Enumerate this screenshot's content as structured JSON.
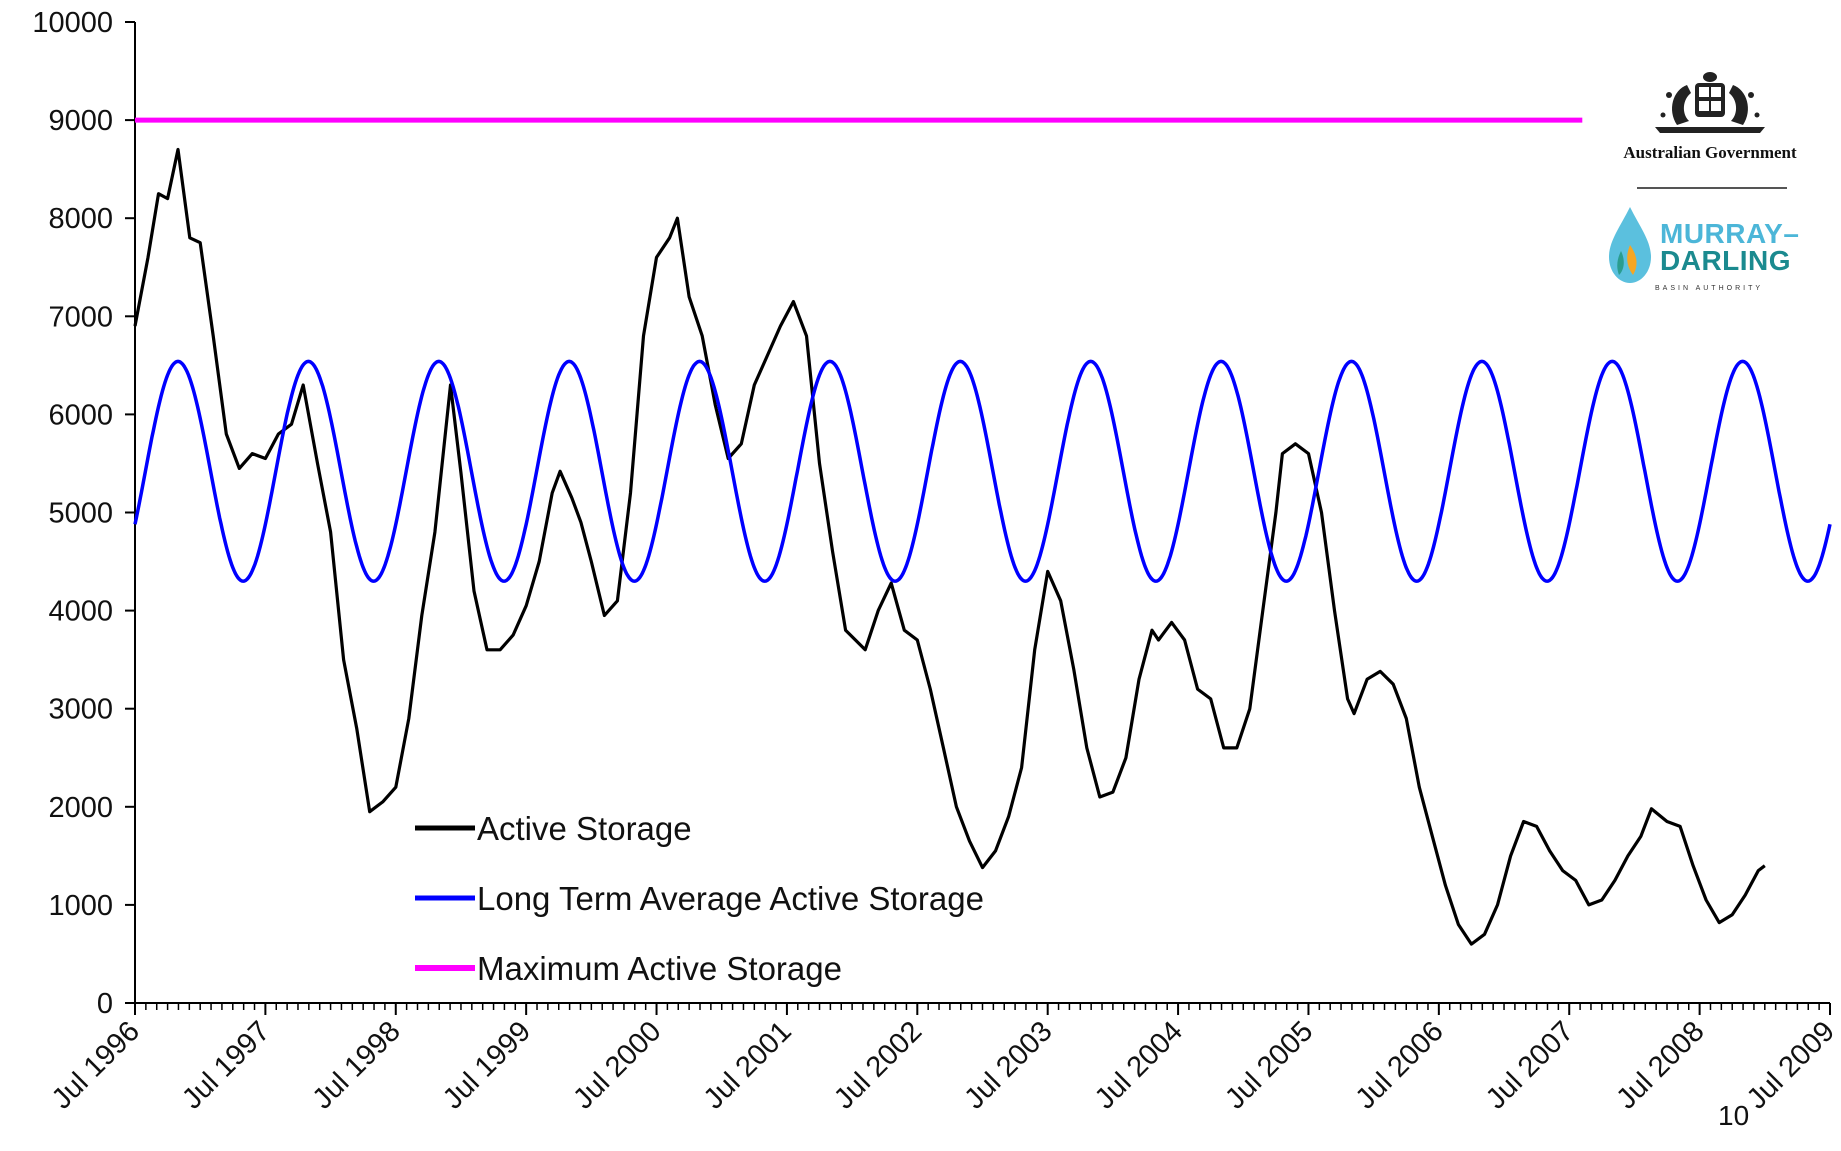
{
  "chart_data": {
    "type": "line",
    "title": "",
    "xlabel": "",
    "ylabel": "",
    "ylim": [
      0,
      10000
    ],
    "yticks": [
      0,
      1000,
      2000,
      3000,
      4000,
      5000,
      6000,
      7000,
      8000,
      9000,
      10000
    ],
    "xlim": [
      1996.5,
      2009.5
    ],
    "xtick_labels": [
      "Jul 1996",
      "Jul 1997",
      "Jul 1998",
      "Jul 1999",
      "Jul 2000",
      "Jul 2001",
      "Jul 2002",
      "Jul 2003",
      "Jul 2004",
      "Jul 2005",
      "Jul 2006",
      "Jul 2007",
      "Jul 2008",
      "Jul 2009"
    ],
    "grid": false,
    "legend_position": "bottom-left",
    "series": [
      {
        "name": "Active Storage",
        "color": "#000000",
        "points": [
          [
            1996.5,
            6900
          ],
          [
            1996.6,
            7600
          ],
          [
            1996.68,
            8250
          ],
          [
            1996.75,
            8200
          ],
          [
            1996.83,
            8700
          ],
          [
            1996.92,
            7800
          ],
          [
            1997.0,
            7750
          ],
          [
            1997.1,
            6800
          ],
          [
            1997.2,
            5800
          ],
          [
            1997.3,
            5450
          ],
          [
            1997.4,
            5600
          ],
          [
            1997.5,
            5550
          ],
          [
            1997.6,
            5800
          ],
          [
            1997.7,
            5900
          ],
          [
            1997.79,
            6300
          ],
          [
            1997.9,
            5500
          ],
          [
            1998.0,
            4800
          ],
          [
            1998.1,
            3500
          ],
          [
            1998.2,
            2800
          ],
          [
            1998.3,
            1950
          ],
          [
            1998.4,
            2050
          ],
          [
            1998.5,
            2200
          ],
          [
            1998.6,
            2900
          ],
          [
            1998.7,
            3950
          ],
          [
            1998.8,
            4800
          ],
          [
            1998.92,
            6300
          ],
          [
            1999.0,
            5400
          ],
          [
            1999.1,
            4200
          ],
          [
            1999.2,
            3600
          ],
          [
            1999.3,
            3600
          ],
          [
            1999.4,
            3750
          ],
          [
            1999.5,
            4050
          ],
          [
            1999.6,
            4500
          ],
          [
            1999.7,
            5200
          ],
          [
            1999.76,
            5420
          ],
          [
            1999.85,
            5150
          ],
          [
            1999.92,
            4900
          ],
          [
            2000.0,
            4500
          ],
          [
            2000.1,
            3950
          ],
          [
            2000.2,
            4100
          ],
          [
            2000.3,
            5200
          ],
          [
            2000.4,
            6800
          ],
          [
            2000.5,
            7600
          ],
          [
            2000.6,
            7800
          ],
          [
            2000.66,
            8000
          ],
          [
            2000.75,
            7200
          ],
          [
            2000.85,
            6800
          ],
          [
            2000.95,
            6100
          ],
          [
            2001.05,
            5550
          ],
          [
            2001.15,
            5700
          ],
          [
            2001.25,
            6300
          ],
          [
            2001.35,
            6600
          ],
          [
            2001.45,
            6900
          ],
          [
            2001.55,
            7150
          ],
          [
            2001.65,
            6800
          ],
          [
            2001.75,
            5500
          ],
          [
            2001.85,
            4600
          ],
          [
            2001.95,
            3800
          ],
          [
            2002.1,
            3600
          ],
          [
            2002.2,
            4000
          ],
          [
            2002.3,
            4280
          ],
          [
            2002.4,
            3800
          ],
          [
            2002.5,
            3700
          ],
          [
            2002.6,
            3200
          ],
          [
            2002.7,
            2600
          ],
          [
            2002.8,
            2000
          ],
          [
            2002.9,
            1650
          ],
          [
            2003.0,
            1380
          ],
          [
            2003.1,
            1550
          ],
          [
            2003.2,
            1900
          ],
          [
            2003.3,
            2400
          ],
          [
            2003.4,
            3600
          ],
          [
            2003.5,
            4400
          ],
          [
            2003.6,
            4100
          ],
          [
            2003.7,
            3400
          ],
          [
            2003.8,
            2600
          ],
          [
            2003.9,
            2100
          ],
          [
            2004.0,
            2150
          ],
          [
            2004.1,
            2500
          ],
          [
            2004.2,
            3300
          ],
          [
            2004.3,
            3800
          ],
          [
            2004.35,
            3700
          ],
          [
            2004.45,
            3880
          ],
          [
            2004.55,
            3700
          ],
          [
            2004.65,
            3200
          ],
          [
            2004.75,
            3100
          ],
          [
            2004.85,
            2600
          ],
          [
            2004.95,
            2600
          ],
          [
            2005.05,
            3000
          ],
          [
            2005.15,
            4000
          ],
          [
            2005.25,
            5000
          ],
          [
            2005.3,
            5600
          ],
          [
            2005.4,
            5700
          ],
          [
            2005.5,
            5600
          ],
          [
            2005.6,
            5000
          ],
          [
            2005.7,
            4000
          ],
          [
            2005.8,
            3100
          ],
          [
            2005.85,
            2950
          ],
          [
            2005.95,
            3300
          ],
          [
            2006.05,
            3380
          ],
          [
            2006.15,
            3250
          ],
          [
            2006.25,
            2900
          ],
          [
            2006.35,
            2200
          ],
          [
            2006.45,
            1700
          ],
          [
            2006.55,
            1200
          ],
          [
            2006.65,
            800
          ],
          [
            2006.75,
            600
          ],
          [
            2006.85,
            700
          ],
          [
            2006.95,
            1000
          ],
          [
            2007.05,
            1500
          ],
          [
            2007.15,
            1850
          ],
          [
            2007.25,
            1800
          ],
          [
            2007.35,
            1550
          ],
          [
            2007.45,
            1350
          ],
          [
            2007.55,
            1250
          ],
          [
            2007.65,
            1000
          ],
          [
            2007.75,
            1050
          ],
          [
            2007.85,
            1250
          ],
          [
            2007.95,
            1500
          ],
          [
            2008.05,
            1700
          ],
          [
            2008.13,
            1980
          ],
          [
            2008.25,
            1850
          ],
          [
            2008.35,
            1800
          ],
          [
            2008.45,
            1400
          ],
          [
            2008.55,
            1050
          ],
          [
            2008.65,
            820
          ],
          [
            2008.75,
            900
          ],
          [
            2008.85,
            1100
          ],
          [
            2008.95,
            1350
          ],
          [
            2009.0,
            1400
          ]
        ]
      },
      {
        "name": "Long Term Average Active Storage",
        "color": "#0000ff",
        "mean": 5420,
        "amplitude": 1120,
        "peak_offset_years": 0.33,
        "period_years": 1,
        "points": []
      },
      {
        "name": "Maximum Active Storage",
        "color": "#ff00ff",
        "points": [
          [
            1996.5,
            9000
          ],
          [
            2007.6,
            9000
          ]
        ]
      }
    ]
  },
  "branding": {
    "government": "Australian Government",
    "org_line1": "MURRAY–",
    "org_line2": "DARLING",
    "org_sub": "BASIN AUTHORITY"
  },
  "page_number": "10"
}
